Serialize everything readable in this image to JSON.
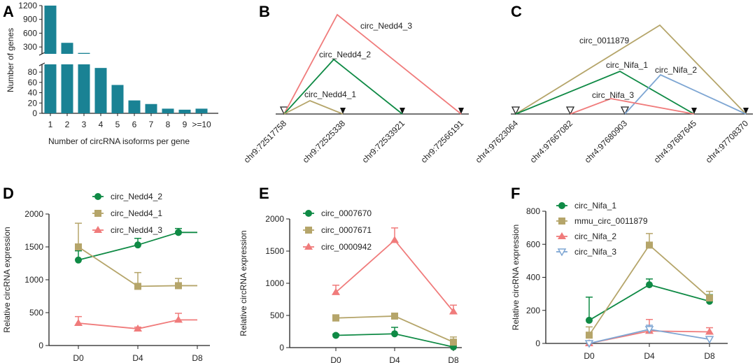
{
  "colors": {
    "bar": "#1a8294",
    "green": "#0f8a45",
    "tan": "#b5a56a",
    "pink": "#f07b7b",
    "blue": "#7ea6d3",
    "tan_label": "#b3906d",
    "blue_label": "#1f8cc9"
  },
  "chart_data": [
    {
      "panel": "A",
      "type": "bar",
      "categories": [
        "1",
        "2",
        "3",
        "4",
        "5",
        "6",
        "7",
        "8",
        "9",
        ">=10"
      ],
      "values": [
        1200,
        390,
        170,
        88,
        55,
        25,
        18,
        9,
        7,
        9
      ],
      "xlabel": "Number of circRNA isoforms per gene",
      "ylabel": "Number of genes",
      "ylim_upper": [
        150,
        1200
      ],
      "ylim_lower": [
        0,
        95
      ],
      "yticks_upper": [
        "1200",
        "900",
        "600",
        "300"
      ],
      "yticks_lower": [
        "80",
        "60",
        "40",
        "20",
        "0"
      ]
    },
    {
      "panel": "B",
      "type": "diagram",
      "ticks": [
        "chr9:72517758",
        "chr9:72525338",
        "chr9:72533921",
        "chr9:72566191"
      ],
      "arcs": [
        {
          "name": "circ_Nedd4_3",
          "start": "chr9:72517758",
          "end": "chr9:72566191"
        },
        {
          "name": "circ_Nedd4_2",
          "start": "chr9:72517758",
          "end": "chr9:72533921"
        },
        {
          "name": "circ_Nedd4_1",
          "start": "chr9:72517758",
          "end": "chr9:72525338"
        }
      ]
    },
    {
      "panel": "C",
      "type": "diagram",
      "ticks": [
        "chr4:97623064",
        "chr4:97667082",
        "chr4:97680903",
        "chr4:97687645",
        "chr4:97708370"
      ],
      "arcs": [
        {
          "name": "circ_0011879",
          "start": "chr4:97623064",
          "end": "chr4:97708370"
        },
        {
          "name": "circ_Nifa_1",
          "start": "chr4:97623064",
          "end": "chr4:97687645"
        },
        {
          "name": "circ_Nifa_2",
          "start": "chr4:97680903",
          "end": "chr4:97708370"
        },
        {
          "name": "circ_Nifa_3",
          "start": "chr4:97667082",
          "end": "chr4:97687645"
        }
      ]
    },
    {
      "panel": "D",
      "type": "line",
      "categories": [
        "D0",
        "D4",
        "D8"
      ],
      "ylabel": "Relative circRNA expression",
      "ylim": [
        0,
        2000
      ],
      "yticks": [
        "0",
        "500",
        "1000",
        "1500",
        "2000"
      ],
      "series": [
        {
          "name": "circ_Nedd4_2",
          "values": [
            1300,
            1530,
            1720
          ],
          "err": [
            140,
            100,
            60
          ]
        },
        {
          "name": "circ_Nedd4_1",
          "values": [
            1500,
            900,
            910
          ],
          "err": [
            360,
            210,
            110
          ]
        },
        {
          "name": "circ_Nedd4_3",
          "values": [
            340,
            255,
            390
          ],
          "err": [
            100,
            25,
            100
          ]
        }
      ]
    },
    {
      "panel": "E",
      "type": "line",
      "categories": [
        "D0",
        "D4",
        "D8"
      ],
      "ylabel": "Relative circRNA expression",
      "ylim": [
        0,
        2000
      ],
      "yticks": [
        "0",
        "500",
        "1000",
        "1500",
        "2000"
      ],
      "series": [
        {
          "name": "circ_0007670",
          "values": [
            190,
            215,
            10
          ],
          "err": [
            20,
            100,
            25
          ]
        },
        {
          "name": "circ_0007671",
          "values": [
            460,
            490,
            85
          ],
          "err": [
            50,
            30,
            80
          ]
        },
        {
          "name": "circ_0000942",
          "values": [
            860,
            1670,
            560
          ],
          "err": [
            110,
            190,
            100
          ]
        }
      ]
    },
    {
      "panel": "F",
      "type": "line",
      "categories": [
        "D0",
        "D4",
        "D8"
      ],
      "ylabel": "Relative circRNA expression",
      "ylim": [
        0,
        800
      ],
      "yticks": [
        "0",
        "200",
        "400",
        "600",
        "800"
      ],
      "series": [
        {
          "name": "circ_Nifa_1",
          "values": [
            140,
            355,
            255
          ],
          "err": [
            140,
            35,
            40
          ]
        },
        {
          "name": "mmu_circ_0011879",
          "values": [
            50,
            595,
            275
          ],
          "err": [
            50,
            70,
            40
          ]
        },
        {
          "name": "circ_Nifa_2",
          "values": [
            0,
            75,
            70
          ],
          "err": [
            0,
            70,
            25
          ]
        },
        {
          "name": "circ_Nifa_3",
          "values": [
            0,
            85,
            25
          ],
          "err": [
            0,
            25,
            15
          ]
        }
      ]
    }
  ],
  "panel_labels": [
    "A",
    "B",
    "C",
    "D",
    "E",
    "F"
  ]
}
